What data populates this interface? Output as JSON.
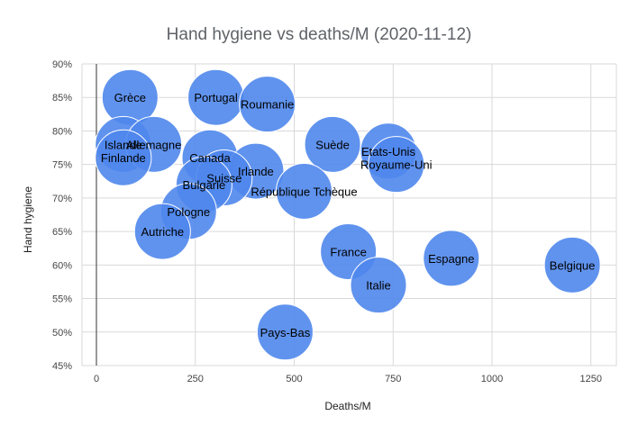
{
  "chart_data": {
    "type": "scatter",
    "title": "Hand hygiene vs deaths/M (2020-11-12)",
    "xlabel": "Deaths/M",
    "ylabel": "Hand hygiene",
    "xlim": [
      0,
      1320
    ],
    "ylim": [
      45,
      90
    ],
    "x_ticks": [
      "0",
      "250",
      "500",
      "750",
      "1000",
      "1250"
    ],
    "y_ticks": [
      "45%",
      "50%",
      "55%",
      "60%",
      "65%",
      "70%",
      "75%",
      "80%",
      "85%",
      "90%"
    ],
    "grid": true,
    "color": "#4f87ec",
    "points": [
      {
        "label": "Grèce",
        "x": 85,
        "y": 85
      },
      {
        "label": "Portugal",
        "x": 302,
        "y": 85
      },
      {
        "label": "Roumanie",
        "x": 432,
        "y": 84
      },
      {
        "label": "Islande",
        "x": 68,
        "y": 78
      },
      {
        "label": "Allemagne",
        "x": 145,
        "y": 78
      },
      {
        "label": "Finlande",
        "x": 68,
        "y": 76
      },
      {
        "label": "Suède",
        "x": 597,
        "y": 78
      },
      {
        "label": "Etats-Unis",
        "x": 738,
        "y": 77
      },
      {
        "label": "Royaume-Uni",
        "x": 758,
        "y": 75
      },
      {
        "label": "Canada",
        "x": 287,
        "y": 76
      },
      {
        "label": "Irlande",
        "x": 403,
        "y": 74
      },
      {
        "label": "Suisse",
        "x": 323,
        "y": 73
      },
      {
        "label": "Bulgarie",
        "x": 272,
        "y": 72
      },
      {
        "label": "République Tchèque",
        "x": 525,
        "y": 71
      },
      {
        "label": "Pologne",
        "x": 233,
        "y": 68
      },
      {
        "label": "Autriche",
        "x": 167,
        "y": 65
      },
      {
        "label": "France",
        "x": 637,
        "y": 62
      },
      {
        "label": "Espagne",
        "x": 897,
        "y": 61
      },
      {
        "label": "Belgique",
        "x": 1203,
        "y": 60
      },
      {
        "label": "Italie",
        "x": 713,
        "y": 57
      },
      {
        "label": "Pays-Bas",
        "x": 477,
        "y": 50
      }
    ]
  }
}
